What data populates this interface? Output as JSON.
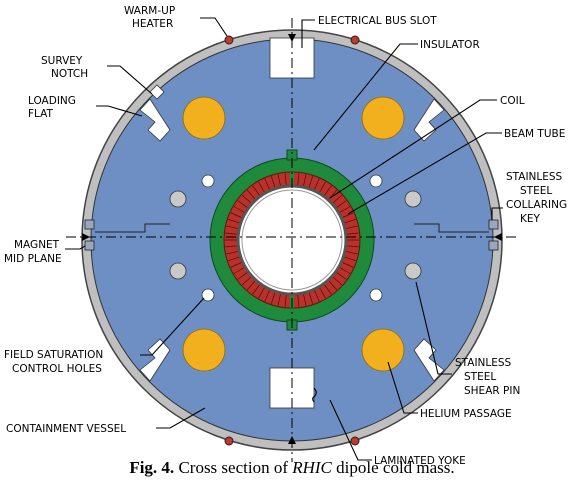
{
  "labels": {
    "warm_up_heater": [
      "WARM-UP",
      "HEATER"
    ],
    "electrical_bus_slot": "ELECTRICAL BUS SLOT",
    "insulator": "INSULATOR",
    "survey_notch": [
      "SURVEY",
      "NOTCH"
    ],
    "loading_flat": [
      "LOADING",
      "FLAT"
    ],
    "coil": "COIL",
    "beam_tube": "BEAM TUBE",
    "collaring_key": [
      "STAINLESS",
      "STEEL",
      "COLLARING",
      "KEY"
    ],
    "magnet_mid_plane": [
      "MAGNET",
      "MID PLANE"
    ],
    "field_saturation": [
      "FIELD SATURATION",
      "CONTROL HOLES"
    ],
    "shear_pin": [
      "STAINLESS",
      "STEEL",
      "SHEAR PIN"
    ],
    "helium_passage": "HELIUM PASSAGE",
    "containment_vessel": "CONTAINMENT VESSEL",
    "laminated_yoke": "LAMINATED YOKE"
  },
  "caption": {
    "prefix": "Fig. 4.",
    "text_before": " Cross section of ",
    "italic": "RHIC",
    "text_after": " dipole cold mass."
  },
  "colors": {
    "yoke": "#6e8fc4",
    "vessel": "#bfbfbf",
    "collar": "#1f8a3c",
    "coil": "#b8312a",
    "helium": "#f2b01e",
    "hole": "#c9c9c9"
  }
}
